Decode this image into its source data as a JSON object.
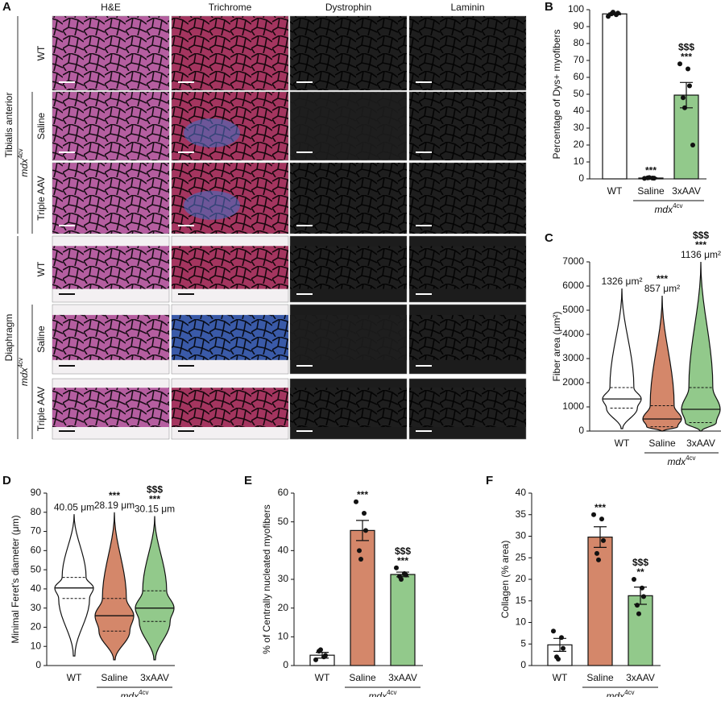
{
  "panels": [
    "A",
    "B",
    "C",
    "D",
    "E",
    "F"
  ],
  "group_label": {
    "text": "mdx",
    "sup": "4cv"
  },
  "panel_a": {
    "columns": [
      "H&E",
      "Trichrome",
      "Dystrophin",
      "Laminin"
    ],
    "sections": [
      {
        "name": "Tibialis anterior",
        "rows": [
          "WT",
          "Saline",
          "Triple AAV"
        ]
      },
      {
        "name": "Diaphragm",
        "rows": [
          "WT",
          "Saline",
          "Triple AAV"
        ]
      }
    ]
  },
  "chart_data": [
    {
      "type": "bar",
      "ylabel": "Percentage of Dys+ myofibers",
      "categories": [
        "WT",
        "Saline",
        "3xAAV"
      ],
      "colors": [
        "#ffffff",
        "#d4876a",
        "#92c98b"
      ],
      "values": [
        97.5,
        0.5,
        49.5
      ],
      "errors": [
        0.5,
        0.2,
        7.5
      ],
      "points": [
        [
          96,
          97,
          98,
          97.5,
          98.5
        ],
        [
          0.3,
          0.5,
          0.4,
          0.6,
          0.8
        ],
        [
          68,
          65,
          55,
          48,
          42,
          20
        ]
      ],
      "annotations": [
        [],
        [
          "***"
        ],
        [
          "$$$",
          "***"
        ]
      ],
      "ylim": [
        0,
        100
      ],
      "yticks": [
        0,
        10,
        20,
        30,
        40,
        50,
        60,
        70,
        80,
        90,
        100
      ]
    },
    {
      "type": "violin",
      "ylabel": "Fiber area (μm²)",
      "categories": [
        "WT",
        "Saline",
        "3xAAV"
      ],
      "colors": [
        "#ffffff",
        "#d4876a",
        "#92c98b"
      ],
      "min": [
        100,
        0,
        0
      ],
      "q1": [
        950,
        180,
        350
      ],
      "median": [
        1330,
        500,
        900
      ],
      "q3": [
        1800,
        1050,
        1800
      ],
      "max": [
        5900,
        5600,
        7000
      ],
      "means": [
        1326,
        857,
        1136
      ],
      "value_labels": [
        "1326 μm²",
        "857 μm²",
        "1136 μm²"
      ],
      "annotations": [
        [],
        [
          "***"
        ],
        [
          "$$$",
          "***"
        ]
      ],
      "ylim": [
        0,
        7000
      ],
      "yticks": [
        0,
        1000,
        2000,
        3000,
        4000,
        5000,
        6000,
        7000
      ]
    },
    {
      "type": "violin",
      "ylabel": "Minimal Feret's diameter (μm)",
      "categories": [
        "WT",
        "Saline",
        "3xAAV"
      ],
      "colors": [
        "#ffffff",
        "#d4876a",
        "#92c98b"
      ],
      "min": [
        5,
        3,
        3
      ],
      "q1": [
        35,
        18,
        23
      ],
      "median": [
        40.5,
        26,
        30
      ],
      "q3": [
        46,
        35,
        39
      ],
      "max": [
        79,
        80,
        78
      ],
      "means": [
        40.05,
        28.19,
        30.15
      ],
      "value_labels": [
        "40.05 μm",
        "28.19 μm",
        "30.15 μm"
      ],
      "annotations": [
        [],
        [
          "***"
        ],
        [
          "$$$",
          "***"
        ]
      ],
      "ylim": [
        0,
        90
      ],
      "yticks": [
        0,
        10,
        20,
        30,
        40,
        50,
        60,
        70,
        80,
        90
      ]
    },
    {
      "type": "bar",
      "ylabel": "% of Centrally nucleated myofibers",
      "categories": [
        "WT",
        "Saline",
        "3xAAV"
      ],
      "colors": [
        "#ffffff",
        "#d4876a",
        "#92c98b"
      ],
      "values": [
        3.6,
        47,
        31.7
      ],
      "errors": [
        1,
        3.5,
        0.8
      ],
      "points": [
        [
          2,
          3,
          3.5,
          5,
          5.5
        ],
        [
          57,
          53,
          47,
          40,
          37
        ],
        [
          34,
          32,
          31.5,
          31,
          30
        ]
      ],
      "annotations": [
        [],
        [
          "***"
        ],
        [
          "$$$",
          "***"
        ]
      ],
      "ylim": [
        0,
        60
      ],
      "yticks": [
        0,
        10,
        20,
        30,
        40,
        50,
        60
      ]
    },
    {
      "type": "bar",
      "ylabel": "Collagen (% area)",
      "categories": [
        "WT",
        "Saline",
        "3xAAV"
      ],
      "colors": [
        "#ffffff",
        "#d4876a",
        "#92c98b"
      ],
      "values": [
        4.8,
        29.8,
        16.2
      ],
      "errors": [
        1.5,
        2.4,
        2
      ],
      "points": [
        [
          8,
          6.5,
          4,
          2,
          1.5
        ],
        [
          35,
          34,
          29,
          26,
          24.5
        ],
        [
          20,
          18,
          16,
          14,
          12
        ]
      ],
      "annotations": [
        [],
        [
          "***"
        ],
        [
          "$$$",
          "**"
        ]
      ],
      "ylim": [
        0,
        40
      ],
      "yticks": [
        0,
        5,
        10,
        15,
        20,
        25,
        30,
        35,
        40
      ]
    }
  ]
}
